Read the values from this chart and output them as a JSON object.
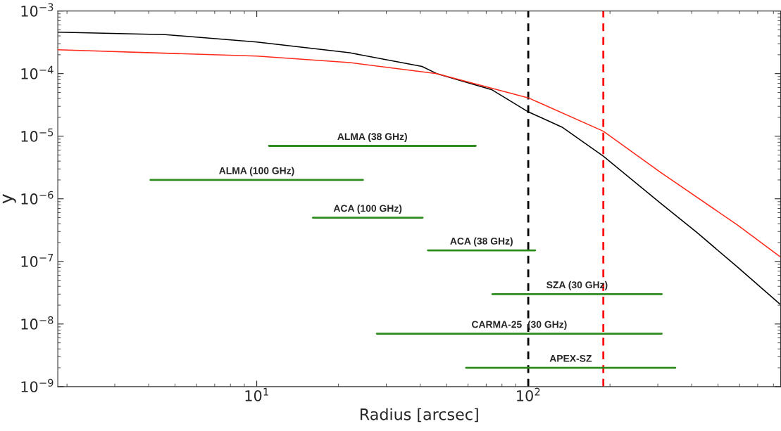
{
  "chart_data": {
    "type": "line",
    "xlabel": "Radius [arcsec]",
    "ylabel": "y",
    "log": "xy",
    "grid": false,
    "legend": false,
    "marker": "none",
    "xlim": [
      1.85,
      850
    ],
    "ylim": [
      1e-09,
      0.001
    ],
    "xticks": [
      {
        "value": 10,
        "label": "10$^{1}$"
      },
      {
        "value": 100,
        "label": "10$^{2}$"
      }
    ],
    "yticks": [
      {
        "value": 1e-09,
        "label": "10$^{−9}$"
      },
      {
        "value": 1e-08,
        "label": "10$^{−8}$"
      },
      {
        "value": 1e-07,
        "label": "10$^{−7}$"
      },
      {
        "value": 1e-06,
        "label": "10$^{−6}$"
      },
      {
        "value": 1e-05,
        "label": "10$^{−5}$"
      },
      {
        "value": 0.0001,
        "label": "10$^{−4}$"
      },
      {
        "value": 0.001,
        "label": "10$^{−3}$"
      }
    ],
    "series": [
      {
        "color": "#000000",
        "line_style": "solid",
        "x": [
          1.85,
          4.6,
          10,
          22,
          40.6,
          46,
          73.6,
          100,
          133,
          189,
          309,
          418,
          590,
          843
        ],
        "values": [
          0.00046,
          0.00042,
          0.00032,
          0.000215,
          0.00013,
          0.0001,
          5.5e-05,
          2.45e-05,
          1.4e-05,
          4.8e-06,
          8.3e-07,
          2.9e-07,
          8.1e-08,
          2.1e-08
        ]
      },
      {
        "color": "#ff2a1a",
        "line_style": "solid",
        "x": [
          1.85,
          10,
          22,
          46,
          100,
          189,
          309,
          590,
          843
        ],
        "values": [
          0.00024,
          0.00019,
          0.00015,
          0.0001,
          4.1e-05,
          1.2e-05,
          2.6e-06,
          3.8e-07,
          1.2e-07
        ]
      },
      {
        "name": "ALMA (38 GHz)",
        "color": "#2e8b1e",
        "x": [
          11.1,
          64
        ],
        "values": [
          7e-06,
          7e-06
        ]
      },
      {
        "name": "ALMA (100 GHz)",
        "color": "#2e8b1e",
        "x": [
          4.06,
          24.6
        ],
        "values": [
          2e-06,
          2e-06
        ]
      },
      {
        "name": "ACA (100 GHz)",
        "color": "#2e8b1e",
        "x": [
          16.1,
          40.8
        ],
        "values": [
          5e-07,
          5e-07
        ]
      },
      {
        "name": "ACA (38 GHz)",
        "color": "#2e8b1e",
        "x": [
          42.7,
          106
        ],
        "values": [
          1.5e-07,
          1.5e-07
        ]
      },
      {
        "name": "SZA (30 GHz)",
        "color": "#2e8b1e",
        "x": [
          73.8,
          310
        ],
        "values": [
          3e-08,
          3e-08
        ]
      },
      {
        "name": "CARMA-25  (30 GHz)",
        "color": "#2e8b1e",
        "x": [
          27.7,
          310
        ],
        "values": [
          7e-09,
          7e-09
        ]
      },
      {
        "name": "APEX-SZ",
        "color": "#2e8b1e",
        "x": [
          59,
          348
        ],
        "values": [
          2e-09,
          2e-09
        ]
      }
    ],
    "ref_lines": [
      {
        "axis": "x",
        "value": 100,
        "color": "#000000",
        "line_style": "dashed"
      },
      {
        "axis": "x",
        "value": 189,
        "color": "#ff0000",
        "line_style": "dashed"
      }
    ]
  }
}
